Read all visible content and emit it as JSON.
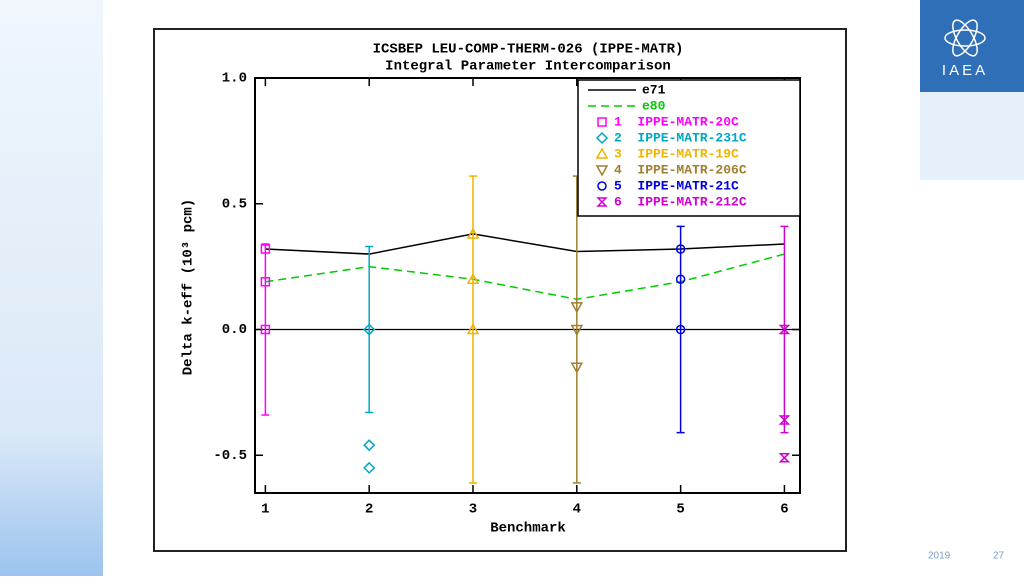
{
  "logo": "IAEA",
  "footer": {
    "date": "2019",
    "page": "27"
  },
  "chart_data": {
    "type": "line",
    "title": "ICSBEP LEU-COMP-THERM-026 (IPPE-MATR)",
    "subtitle": "Integral Parameter Intercomparison",
    "xlabel": "Benchmark",
    "ylabel": "Delta k-eff (10³ pcm)",
    "xlim": [
      0.9,
      6.15
    ],
    "xticks": [
      1,
      2,
      3,
      4,
      5,
      6
    ],
    "ylim": [
      -0.65,
      1.0
    ],
    "yticks": [
      -0.5,
      {
        "value": 0,
        "label": "0.0"
      },
      0.5,
      {
        "value": 1,
        "label": "1.0"
      }
    ],
    "zero_line": true,
    "legend": "upper right",
    "series": [
      {
        "name": "e71",
        "color": "#000000",
        "linestyle": "solid",
        "x": [
          1,
          2,
          3,
          4,
          5,
          6
        ],
        "values": [
          0.32,
          0.3,
          0.38,
          0.31,
          0.32,
          0.34
        ]
      },
      {
        "name": "e80",
        "color": "#00cc00",
        "linestyle": "dashed",
        "x": [
          1,
          2,
          3,
          4,
          5,
          6
        ],
        "values": [
          0.19,
          0.25,
          0.2,
          0.12,
          0.19,
          0.3
        ]
      },
      {
        "name": "1  IPPE-MATR-20C",
        "color": "#ff00ff",
        "marker": "square",
        "x": [
          1,
          1,
          1
        ],
        "values": [
          0.32,
          0.19,
          0
        ],
        "errors": [
          null,
          null,
          0.34
        ]
      },
      {
        "name": "2  IPPE-MATR-231C",
        "color": "#00a8c8",
        "marker": "diamond",
        "x": [
          2,
          2,
          2
        ],
        "values": [
          0,
          -0.46,
          -0.55
        ],
        "errors": [
          0.33,
          null,
          null
        ]
      },
      {
        "name": "3  IPPE-MATR-19C",
        "color": "#f0b400",
        "marker": "triangle-up",
        "x": [
          3,
          3,
          3
        ],
        "values": [
          0.38,
          0.2,
          0
        ],
        "errors": [
          null,
          null,
          0.61
        ]
      },
      {
        "name": "4  IPPE-MATR-206C",
        "color": "#a08030",
        "marker": "triangle-down",
        "x": [
          4,
          4,
          4
        ],
        "values": [
          0.09,
          -0.15,
          0
        ],
        "errors": [
          null,
          null,
          0.61
        ]
      },
      {
        "name": "5  IPPE-MATR-21C",
        "color": "#0000e0",
        "marker": "circle",
        "x": [
          5,
          5,
          5
        ],
        "values": [
          0.32,
          0.2,
          0
        ],
        "errors": [
          null,
          null,
          0.41
        ]
      },
      {
        "name": "6  IPPE-MATR-212C",
        "color": "#d000d0",
        "marker": "hourglass",
        "x": [
          6,
          6,
          6
        ],
        "values": [
          0,
          -0.36,
          -0.51
        ],
        "errors": [
          0.41,
          null,
          null
        ]
      }
    ]
  }
}
